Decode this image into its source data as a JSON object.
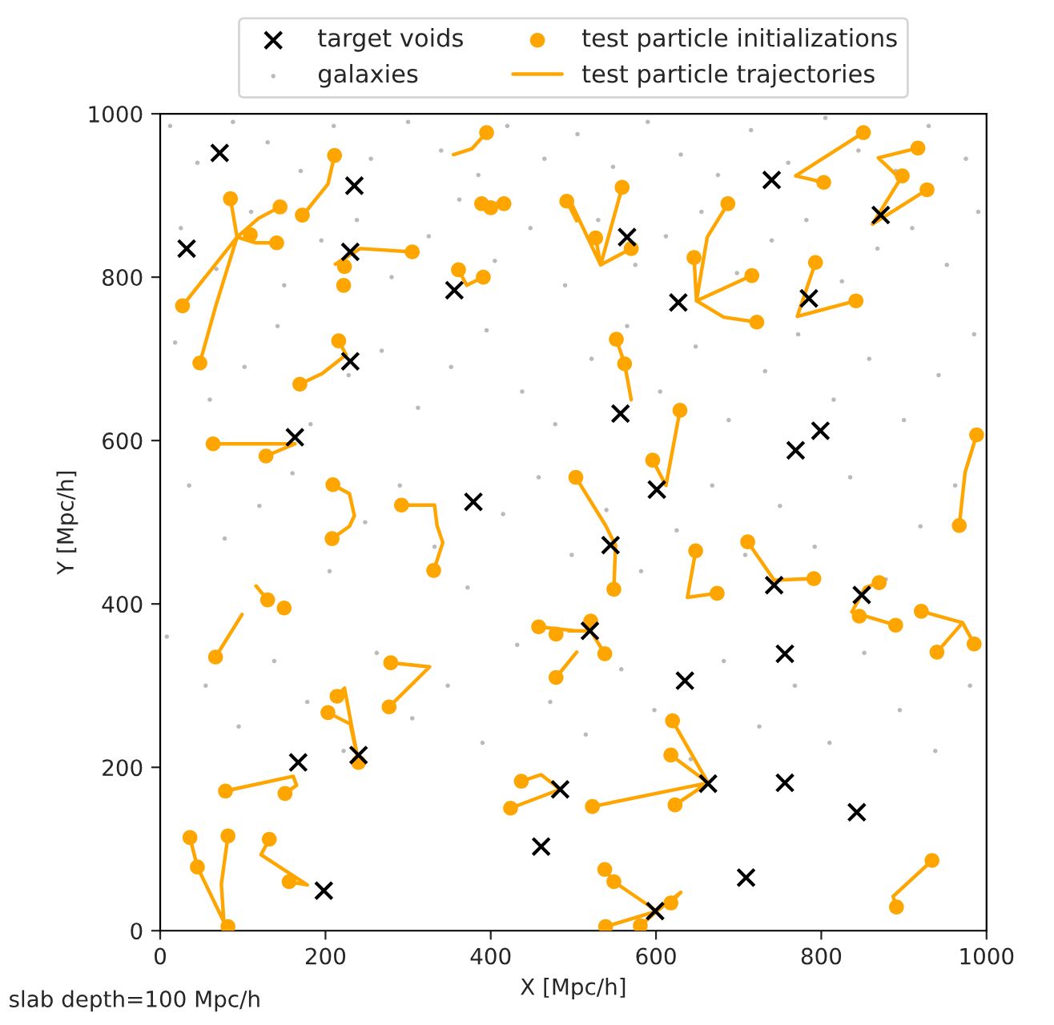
{
  "chart_data": {
    "type": "scatter",
    "xlabel": "X [Mpc/h]",
    "ylabel": "Y [Mpc/h]",
    "annotations": [
      "slab depth=100 Mpc/h"
    ],
    "xlim": [
      0,
      1000
    ],
    "ylim": [
      0,
      1000
    ],
    "xticks": [
      0,
      200,
      400,
      600,
      800,
      1000
    ],
    "yticks": [
      0,
      200,
      400,
      600,
      800,
      1000
    ],
    "grid": false,
    "legend": "top",
    "series": [
      {
        "name": "target voids",
        "marker": "cross",
        "color": "#000000",
        "x": [
          72,
          235,
          32,
          230,
          356,
          230,
          163,
          379,
          740,
          565,
          872,
          627,
          785,
          557,
          799,
          769,
          601,
          545,
          743,
          849,
          756,
          635,
          663,
          756,
          843,
          709,
          599,
          520,
          167,
          240,
          198,
          484,
          461
        ],
        "values": [
          952,
          912,
          835,
          831,
          784,
          697,
          604,
          525,
          919,
          849,
          876,
          769,
          774,
          633,
          612,
          588,
          540,
          472,
          423,
          411,
          339,
          306,
          180,
          181,
          145,
          65,
          24,
          367,
          206,
          215,
          49,
          173,
          103
        ]
      },
      {
        "name": "galaxies",
        "marker": "circle",
        "color": "#8c8c8c",
        "x": [
          12,
          45,
          88,
          130,
          170,
          210,
          255,
          300,
          340,
          385,
          420,
          465,
          505,
          548,
          590,
          630,
          675,
          715,
          760,
          805,
          845,
          890,
          930,
          975,
          25,
          68,
          110,
          150,
          195,
          238,
          280,
          325,
          362,
          405,
          448,
          490,
          530,
          575,
          612,
          655,
          698,
          740,
          782,
          825,
          868,
          910,
          952,
          990,
          18,
          60,
          102,
          142,
          182,
          228,
          268,
          312,
          352,
          395,
          438,
          478,
          522,
          565,
          605,
          648,
          688,
          732,
          772,
          815,
          858,
          900,
          942,
          985,
          35,
          78,
          120,
          160,
          205,
          248,
          290,
          332,
          372,
          415,
          458,
          498,
          540,
          582,
          625,
          668,
          708,
          750,
          792,
          835,
          878,
          920,
          962,
          8,
          55,
          95,
          138,
          178,
          222,
          262,
          305,
          348,
          390,
          432,
          472,
          515,
          558,
          598,
          642,
          682,
          725,
          768,
          810,
          852,
          895,
          938,
          980
        ],
        "values": [
          985,
          940,
          990,
          965,
          930,
          985,
          945,
          990,
          955,
          925,
          985,
          945,
          975,
          935,
          990,
          950,
          925,
          980,
          940,
          995,
          955,
          930,
          985,
          945,
          860,
          810,
          880,
          790,
          845,
          870,
          800,
          850,
          895,
          820,
          860,
          790,
          870,
          815,
          850,
          880,
          805,
          845,
          870,
          795,
          835,
          860,
          815,
          880,
          720,
          650,
          690,
          740,
          620,
          680,
          710,
          640,
          690,
          735,
          660,
          620,
          700,
          740,
          660,
          715,
          625,
          685,
          730,
          650,
          700,
          625,
          680,
          730,
          545,
          480,
          520,
          560,
          440,
          500,
          545,
          470,
          420,
          510,
          555,
          460,
          515,
          440,
          490,
          545,
          460,
          520,
          470,
          555,
          430,
          495,
          545,
          360,
          300,
          250,
          330,
          280,
          220,
          340,
          260,
          300,
          230,
          350,
          280,
          240,
          320,
          270,
          210,
          330,
          250,
          300,
          230,
          340,
          270,
          220,
          300
        ]
      },
      {
        "name": "test particle initializations",
        "marker": "circle",
        "color": "#ffa500",
        "x": [
          395,
          211,
          85,
          145,
          172,
          109,
          141,
          27,
          48,
          223,
          222,
          305,
          361,
          391,
          216,
          169,
          64,
          128,
          209,
          292,
          389,
          400,
          416,
          492,
          503,
          851,
          803,
          917,
          898,
          928,
          559,
          527,
          570,
          687,
          646,
          716,
          722,
          793,
          842,
          552,
          562,
          629,
          596,
          988,
          208,
          331,
          130,
          150,
          67,
          279,
          277,
          214,
          203,
          240,
          79,
          151,
          36,
          45,
          82,
          82,
          132,
          156,
          458,
          479,
          479,
          437,
          424,
          967,
          711,
          549,
          648,
          674,
          791,
          870,
          846,
          890,
          921,
          985,
          940,
          521,
          538,
          620,
          618,
          523,
          623,
          538,
          549,
          618,
          539,
          581,
          934,
          891
        ],
        "values": [
          977,
          949,
          896,
          886,
          876,
          852,
          842,
          765,
          695,
          813,
          790,
          831,
          809,
          800,
          722,
          669,
          596,
          581,
          546,
          521,
          890,
          885,
          890,
          893,
          555,
          977,
          916,
          958,
          924,
          907,
          910,
          848,
          835,
          890,
          824,
          802,
          745,
          818,
          771,
          724,
          694,
          637,
          576,
          607,
          480,
          441,
          405,
          395,
          335,
          328,
          274,
          287,
          267,
          206,
          171,
          168,
          114,
          78,
          116,
          5,
          112,
          60,
          372,
          363,
          310,
          183,
          150,
          496,
          476,
          418,
          465,
          413,
          431,
          426,
          385,
          374,
          391,
          351,
          341,
          379,
          339,
          257,
          215,
          152,
          154,
          75,
          60,
          34,
          5,
          6,
          86,
          29
        ]
      },
      {
        "name": "test particle trajectories",
        "type": "line",
        "marker": "none",
        "line_style": "solid",
        "color": "#ffa500",
        "x": [
          395,
          377,
          355,
          null,
          211,
          203,
          176,
          null,
          85,
          93,
          null,
          145,
          119,
          93,
          null,
          141,
          116,
          93,
          null,
          27,
          93,
          null,
          48,
          67,
          93,
          null,
          305,
          242,
          212,
          null,
          391,
          371,
          361,
          null,
          216,
          225,
          null,
          169,
          196,
          225,
          null,
          64,
          163,
          null,
          128,
          163,
          null,
          209,
          229,
          235,
          229,
          208,
          null,
          292,
          332,
          335,
          342,
          331,
          null,
          389,
          416,
          null,
          492,
          504,
          null,
          851,
          769,
          null,
          803,
          769,
          null,
          917,
          869,
          895,
          null,
          928,
          862,
          null,
          898,
          862,
          null,
          559,
          533,
          null,
          527,
          533,
          null,
          570,
          533,
          null,
          494,
          533,
          null,
          687,
          662,
          649,
          null,
          646,
          649,
          null,
          716,
          649,
          null,
          722,
          682,
          649,
          null,
          793,
          771,
          null,
          842,
          771,
          null,
          552,
          562,
          570,
          null,
          629,
          612,
          null,
          596,
          612,
          null,
          503,
          539,
          551,
          549,
          null,
          988,
          974,
          967,
          null,
          130,
          116,
          null,
          67,
          99,
          null,
          279,
          326,
          277,
          null,
          214,
          223,
          240,
          null,
          203,
          230,
          240,
          null,
          79,
          161,
          165,
          151,
          null,
          36,
          45,
          77,
          null,
          82,
          74,
          77,
          null,
          132,
          122,
          178,
          null,
          156,
          178,
          null,
          458,
          504,
          null,
          479,
          504,
          null,
          437,
          461,
          484,
          null,
          424,
          484,
          null,
          648,
          638,
          674,
          null,
          711,
          743,
          791,
          null,
          870,
          853,
          837,
          890,
          null,
          921,
          971,
          985,
          null,
          940,
          971,
          null,
          494,
          521,
          538,
          null,
          620,
          663,
          null,
          618,
          663,
          null,
          523,
          663,
          null,
          623,
          663,
          null,
          538,
          549,
          601,
          630,
          618,
          null,
          539,
          601,
          null,
          581,
          601,
          null,
          934,
          887,
          891
        ],
        "values": [
          977,
          957,
          950,
          null,
          949,
          914,
          880,
          null,
          896,
          849,
          null,
          886,
          872,
          849,
          null,
          842,
          842,
          849,
          null,
          765,
          849,
          null,
          695,
          764,
          849,
          null,
          831,
          835,
          816,
          null,
          800,
          790,
          809,
          null,
          722,
          705,
          null,
          669,
          682,
          705,
          null,
          596,
          596,
          null,
          581,
          596,
          null,
          546,
          535,
          508,
          495,
          480,
          null,
          521,
          521,
          496,
          475,
          441,
          null,
          890,
          890,
          null,
          893,
          869,
          null,
          977,
          924,
          null,
          916,
          924,
          null,
          958,
          946,
          921,
          null,
          907,
          865,
          null,
          924,
          865,
          null,
          910,
          815,
          null,
          848,
          815,
          null,
          835,
          815,
          null,
          898,
          815,
          null,
          890,
          849,
          771,
          null,
          824,
          771,
          null,
          802,
          771,
          null,
          745,
          751,
          771,
          null,
          818,
          752,
          null,
          771,
          752,
          null,
          724,
          694,
          650,
          null,
          637,
          545,
          null,
          576,
          545,
          null,
          555,
          496,
          472,
          418,
          null,
          607,
          561,
          496,
          null,
          405,
          422,
          null,
          335,
          387,
          null,
          328,
          323,
          274,
          null,
          287,
          297,
          206,
          null,
          267,
          253,
          206,
          null,
          171,
          189,
          178,
          168,
          null,
          114,
          78,
          11,
          null,
          116,
          57,
          11,
          null,
          112,
          93,
          56,
          null,
          60,
          56,
          null,
          372,
          367,
          null,
          310,
          341,
          null,
          183,
          191,
          173,
          null,
          150,
          173,
          null,
          465,
          408,
          413,
          null,
          476,
          429,
          431,
          null,
          426,
          420,
          390,
          374,
          null,
          391,
          377,
          351,
          null,
          341,
          377,
          null,
          367,
          367,
          339,
          null,
          257,
          181,
          null,
          215,
          181,
          null,
          152,
          181,
          null,
          154,
          181,
          null,
          75,
          60,
          24,
          47,
          34,
          null,
          5,
          24,
          null,
          6,
          24,
          null,
          86,
          42,
          29
        ]
      }
    ]
  }
}
